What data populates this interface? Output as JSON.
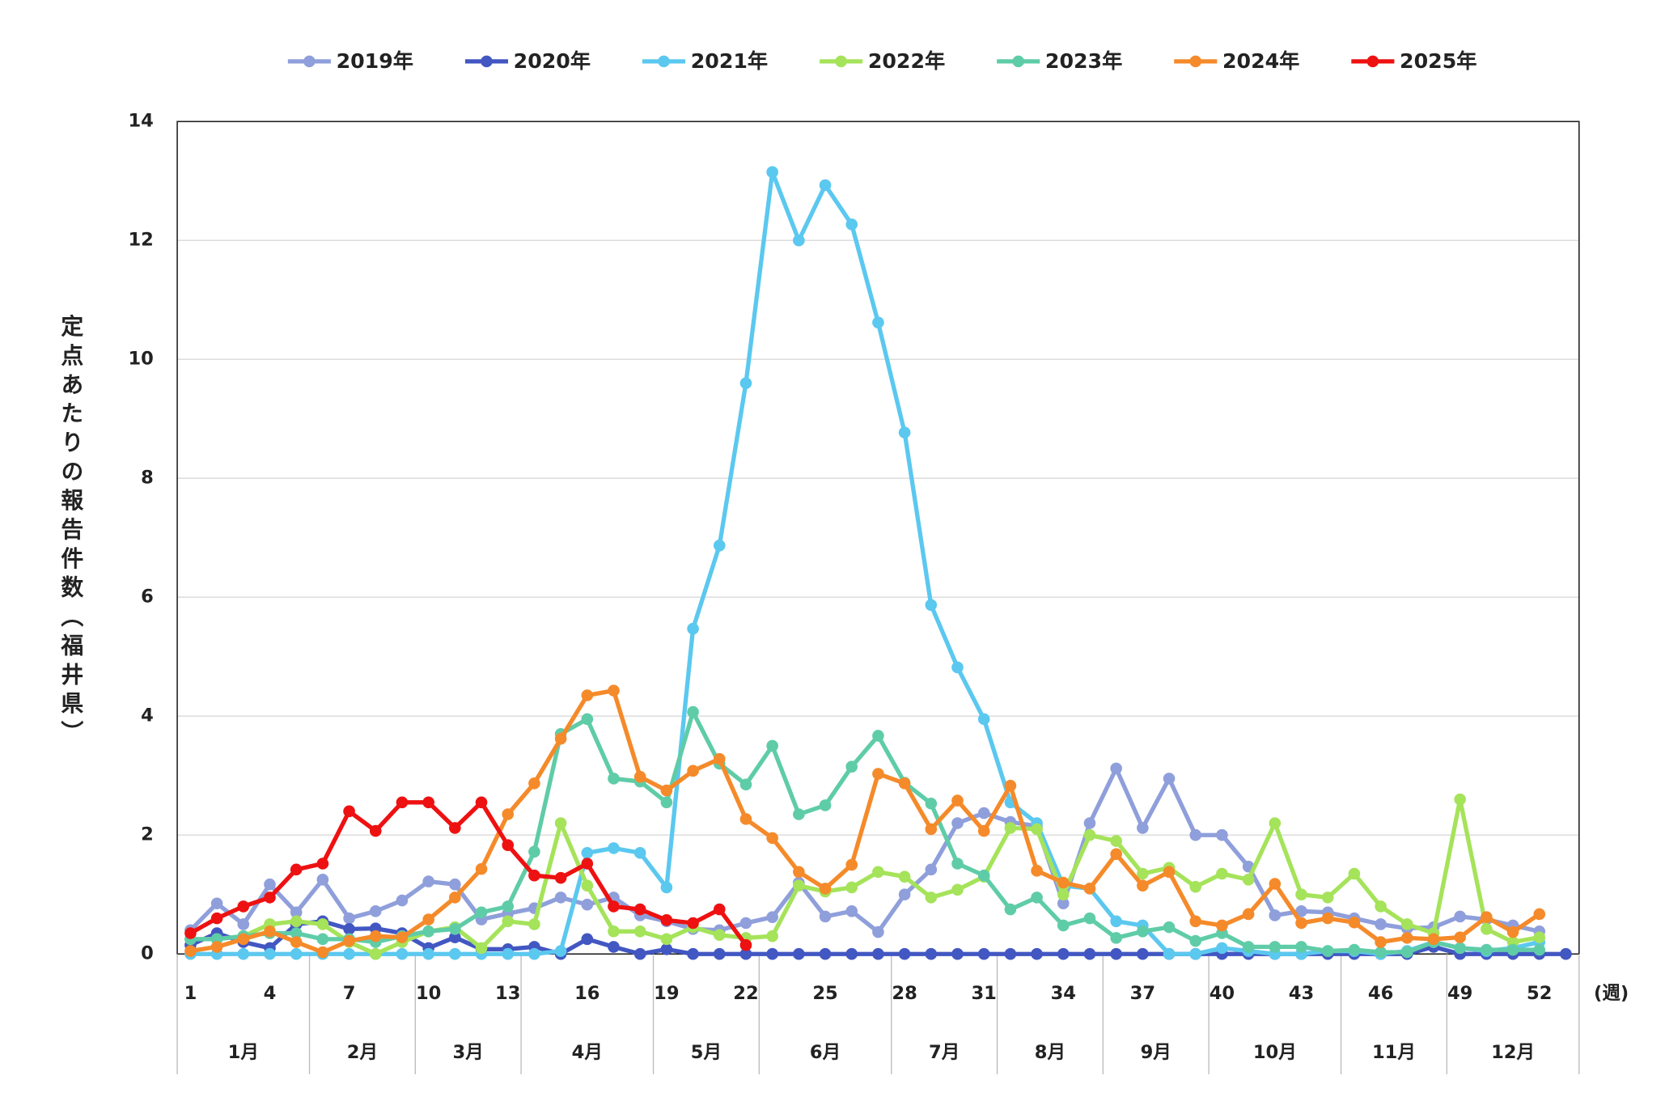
{
  "chart_data": {
    "type": "line",
    "y_label": "定点あたりの報告件数（福井県）",
    "x_unit": "(週)",
    "categories": [
      1,
      null,
      null,
      4,
      null,
      null,
      7,
      null,
      null,
      10,
      null,
      null,
      13,
      null,
      null,
      16,
      null,
      null,
      19,
      null,
      null,
      22,
      null,
      null,
      25,
      null,
      null,
      28,
      null,
      null,
      31,
      null,
      null,
      34,
      null,
      null,
      37,
      null,
      null,
      40,
      null,
      null,
      43,
      null,
      null,
      46,
      null,
      null,
      49,
      null,
      null,
      52,
      null
    ],
    "x_groups": [
      {
        "label": "1月",
        "weeks": 5
      },
      {
        "label": "2月",
        "weeks": 4
      },
      {
        "label": "3月",
        "weeks": 4
      },
      {
        "label": "4月",
        "weeks": 5
      },
      {
        "label": "5月",
        "weeks": 4
      },
      {
        "label": "6月",
        "weeks": 5
      },
      {
        "label": "7月",
        "weeks": 4
      },
      {
        "label": "8月",
        "weeks": 4
      },
      {
        "label": "9月",
        "weeks": 4
      },
      {
        "label": "10月",
        "weeks": 5
      },
      {
        "label": "11月",
        "weeks": 4
      },
      {
        "label": "12月",
        "weeks": 5
      }
    ],
    "ylim": [
      0,
      14
    ],
    "yticks": [
      0,
      2,
      4,
      6,
      8,
      10,
      12,
      14
    ],
    "grid": true,
    "legend": "top",
    "series": [
      {
        "name": "2019年",
        "color": "#8f9fdb",
        "values": [
          0.4,
          0.85,
          0.5,
          1.17,
          0.7,
          1.25,
          0.6,
          0.72,
          0.9,
          1.22,
          1.17,
          0.58,
          0.68,
          0.77,
          0.95,
          0.83,
          0.95,
          0.65,
          0.55,
          0.42,
          0.4,
          0.52,
          0.62,
          1.2,
          0.63,
          0.72,
          0.37,
          1.0,
          1.42,
          2.2,
          2.37,
          2.22,
          2.15,
          0.85,
          2.2,
          3.12,
          2.12,
          2.95,
          2.0,
          2.0,
          1.47,
          0.65,
          0.72,
          0.7,
          0.6,
          0.5,
          0.43,
          0.45,
          0.63,
          0.58,
          0.48,
          0.38,
          null
        ]
      },
      {
        "name": "2020年",
        "color": "#4257c2",
        "values": [
          0.15,
          0.35,
          0.2,
          0.1,
          0.5,
          0.55,
          0.42,
          0.43,
          0.35,
          0.1,
          0.28,
          0.08,
          0.08,
          0.12,
          0,
          0.25,
          0.12,
          0,
          0.08,
          0,
          0,
          0,
          0,
          0,
          0,
          0,
          0,
          0,
          0,
          0,
          0,
          0,
          0,
          0,
          0,
          0,
          0,
          0,
          0,
          0,
          0,
          0,
          0,
          0,
          0,
          0,
          0,
          0.12,
          0,
          0,
          0,
          0,
          0
        ]
      },
      {
        "name": "2021年",
        "color": "#5bc8ef",
        "values": [
          0,
          0,
          0,
          0,
          0,
          0,
          0,
          0,
          0,
          0,
          0,
          0,
          0,
          0,
          0.05,
          1.7,
          1.78,
          1.7,
          1.12,
          5.47,
          6.87,
          9.6,
          13.15,
          12.0,
          12.93,
          12.27,
          10.62,
          8.77,
          5.87,
          4.82,
          3.95,
          2.55,
          2.2,
          1.15,
          1.1,
          0.55,
          0.48,
          0,
          0,
          0.1,
          0.05,
          0,
          0,
          0.05,
          0.05,
          0,
          0.05,
          0.2,
          0.1,
          0.05,
          0.1,
          0.2,
          null
        ]
      },
      {
        "name": "2022年",
        "color": "#a5e35a",
        "values": [
          0.25,
          0.25,
          0.3,
          0.5,
          0.55,
          0.5,
          0.2,
          0,
          0.2,
          0.38,
          0.45,
          0.1,
          0.55,
          0.5,
          2.2,
          1.15,
          0.38,
          0.38,
          0.25,
          0.45,
          0.32,
          0.27,
          0.3,
          1.15,
          1.05,
          1.12,
          1.38,
          1.3,
          0.95,
          1.08,
          1.3,
          2.12,
          2.1,
          1.0,
          2.0,
          1.9,
          1.35,
          1.45,
          1.13,
          1.35,
          1.25,
          2.2,
          1.0,
          0.95,
          1.35,
          0.8,
          0.5,
          0.35,
          2.6,
          0.42,
          0.2,
          0.28,
          null
        ]
      },
      {
        "name": "2023年",
        "color": "#5fcca8",
        "values": [
          0.25,
          0.25,
          0.3,
          0.35,
          0.35,
          0.25,
          0.25,
          0.2,
          0.3,
          0.38,
          0.42,
          0.7,
          0.8,
          1.72,
          3.7,
          3.95,
          2.95,
          2.9,
          2.55,
          4.07,
          3.2,
          2.85,
          3.5,
          2.35,
          2.5,
          3.15,
          3.67,
          2.88,
          2.53,
          1.52,
          1.32,
          0.75,
          0.95,
          0.48,
          0.6,
          0.27,
          0.38,
          0.45,
          0.22,
          0.35,
          0.12,
          0.12,
          0.12,
          0.05,
          0.07,
          0.03,
          0.03,
          0.2,
          0.1,
          0.07,
          0.07,
          0.07,
          null
        ]
      },
      {
        "name": "2024年",
        "color": "#f58a2a",
        "values": [
          0.05,
          0.12,
          0.25,
          0.38,
          0.2,
          0.03,
          0.22,
          0.3,
          0.28,
          0.58,
          0.95,
          1.43,
          2.35,
          2.87,
          3.62,
          4.35,
          4.43,
          2.98,
          2.75,
          3.08,
          3.28,
          2.27,
          1.95,
          1.38,
          1.1,
          1.5,
          3.03,
          2.87,
          2.1,
          2.58,
          2.07,
          2.83,
          1.4,
          1.2,
          1.1,
          1.68,
          1.15,
          1.38,
          0.55,
          0.48,
          0.67,
          1.18,
          0.52,
          0.6,
          0.53,
          0.2,
          0.27,
          0.25,
          0.28,
          0.62,
          0.37,
          0.67,
          null
        ]
      },
      {
        "name": "2025年",
        "color": "#ee1111",
        "values": [
          0.35,
          0.6,
          0.8,
          0.95,
          1.42,
          1.52,
          2.4,
          2.07,
          2.55,
          2.55,
          2.12,
          2.55,
          1.83,
          1.32,
          1.28,
          1.52,
          0.8,
          0.75,
          0.57,
          0.52,
          0.75,
          0.15,
          null,
          null,
          null,
          null,
          null,
          null,
          null,
          null,
          null,
          null,
          null,
          null,
          null,
          null,
          null,
          null,
          null,
          null,
          null,
          null,
          null,
          null,
          null,
          null,
          null,
          null,
          null,
          null,
          null,
          null,
          null
        ]
      }
    ]
  }
}
